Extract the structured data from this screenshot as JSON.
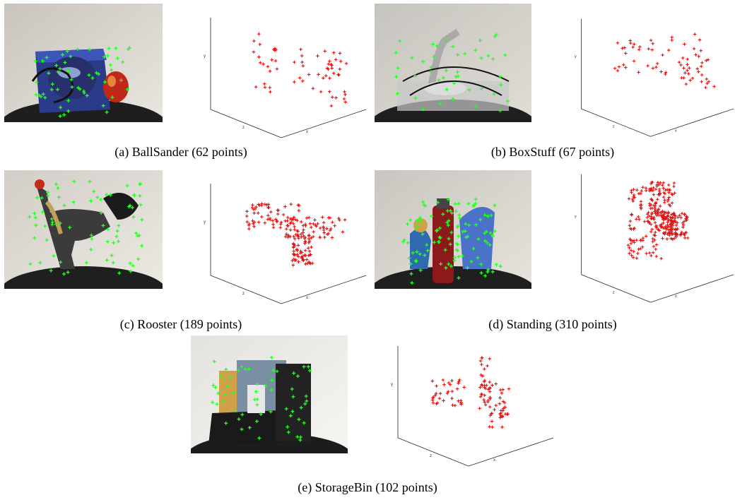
{
  "figure": {
    "panels": [
      {
        "id": "a",
        "caption": "(a) BallSander (62 points)",
        "object": "BallSander",
        "point_count": 62
      },
      {
        "id": "b",
        "caption": "(b) BoxStuff (67 points)",
        "object": "BoxStuff",
        "point_count": 67
      },
      {
        "id": "c",
        "caption": "(c) Rooster (189 points)",
        "object": "Rooster",
        "point_count": 189
      },
      {
        "id": "d",
        "caption": "(d) Standing (310 points)",
        "object": "Standing",
        "point_count": 310
      },
      {
        "id": "e",
        "caption": "(e) StorageBin (102 points)",
        "object": "StorageBin",
        "point_count": 102
      }
    ],
    "axis_labels": {
      "x": "x",
      "y": "y",
      "z": "z"
    },
    "colors": {
      "feature_marker": "#27ff27",
      "point_marker": "#e01010"
    }
  }
}
